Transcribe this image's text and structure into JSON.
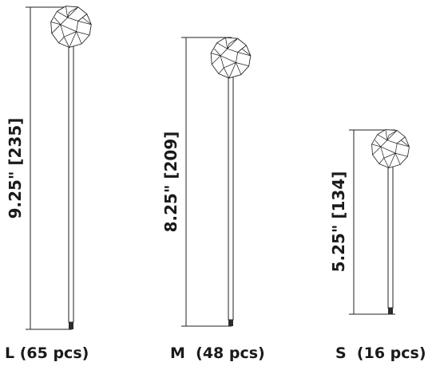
{
  "products": [
    {
      "id": "large",
      "dimension": "9.25\" [235]",
      "size_label": "L (65 pcs)"
    },
    {
      "id": "medium",
      "dimension": "8.25\" [209]",
      "size_label": "M  (48 pcs)"
    },
    {
      "id": "small",
      "dimension": "5.25\" [134]",
      "size_label": "S  (16 pcs)"
    }
  ],
  "colors": {
    "line": "#222222",
    "text": "#1a1a1a",
    "tip": "#2b2b2b"
  }
}
